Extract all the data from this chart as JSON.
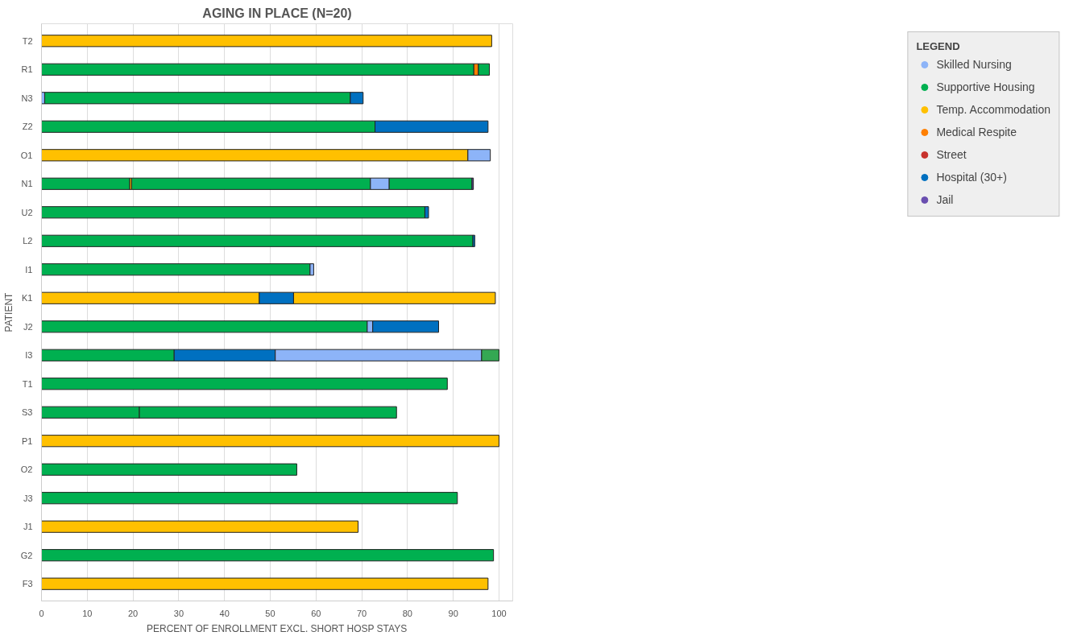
{
  "chart_data": {
    "type": "bar",
    "orientation": "horizontal",
    "stacked": true,
    "title": "AGING IN PLACE (N=20)",
    "xlabel": "PERCENT OF ENROLLMENT EXCL. SHORT HOSP STAYS",
    "ylabel": "PATIENT",
    "categories": [
      "T2",
      "R1",
      "N3",
      "Z2",
      "O1",
      "N1",
      "U2",
      "L2",
      "I1",
      "K1",
      "J2",
      "I3",
      "T1",
      "S3",
      "P1",
      "O2",
      "J3",
      "J1",
      "G2",
      "F3"
    ],
    "xlim": [
      0,
      103
    ],
    "xticks": [
      0,
      10,
      20,
      30,
      40,
      50,
      60,
      70,
      80,
      90,
      100
    ],
    "grid": "x",
    "legend": "right",
    "legend_title": "LEGEND",
    "series": [
      {
        "name": "Skilled Nursing",
        "color": "#8db4f8",
        "values": [
          null,
          null,
          0.7,
          null,
          null,
          null,
          null,
          null,
          null,
          null,
          null,
          null,
          null,
          null,
          null,
          null,
          null,
          null,
          null,
          null
        ]
      },
      {
        "name": "Supportive Housing",
        "color": "#00b050",
        "values": [
          null,
          94.5,
          66.8,
          72.9,
          null,
          19.3,
          83.8,
          94.3,
          58.7,
          null,
          71.2,
          29.0,
          88.7,
          21.4,
          null,
          55.8,
          90.9,
          null,
          98.8,
          null
        ]
      },
      {
        "name": "Temp. Accommodation",
        "color": "#ffc000",
        "values": [
          98.4,
          null,
          null,
          null,
          93.2,
          0.4,
          null,
          null,
          null,
          47.6,
          null,
          null,
          null,
          null,
          100,
          null,
          null,
          69.2,
          null,
          97.6
        ]
      },
      {
        "name": "Medical Respite",
        "color": "#ff7f00",
        "values": [
          null,
          1.0,
          null,
          null,
          null,
          null,
          null,
          null,
          null,
          null,
          null,
          null,
          null,
          null,
          null,
          null,
          null,
          null,
          null,
          null
        ]
      },
      {
        "name": "Street",
        "color": "#c8322d",
        "values": [
          null,
          null,
          null,
          null,
          null,
          null,
          null,
          null,
          null,
          null,
          null,
          null,
          null,
          null,
          null,
          null,
          null,
          null,
          null,
          null
        ]
      },
      {
        "name": "Hospital (30+)",
        "color": "#0070c0",
        "values": [
          null,
          null,
          2.8,
          24.7,
          null,
          null,
          null,
          null,
          null,
          7.5,
          null,
          22.1,
          null,
          null,
          null,
          null,
          null,
          null,
          null,
          null
        ]
      },
      {
        "color": "#00b050",
        "values": [
          null,
          2.4,
          null,
          null,
          null,
          52.2,
          null,
          null,
          null,
          null,
          null,
          null,
          null,
          56.2,
          null,
          null,
          null,
          null,
          null,
          null
        ]
      },
      {
        "color": "#ffc000",
        "values": [
          null,
          null,
          null,
          null,
          null,
          null,
          null,
          null,
          null,
          44.1,
          null,
          null,
          null,
          null,
          null,
          null,
          null,
          null,
          null,
          null
        ]
      },
      {
        "color": "#8db4f8",
        "values": [
          null,
          null,
          null,
          null,
          4.9,
          4.1,
          null,
          null,
          0.8,
          null,
          1.2,
          45.1,
          null,
          null,
          null,
          null,
          null,
          null,
          null,
          null
        ]
      },
      {
        "color": "#0070c0",
        "values": [
          null,
          null,
          null,
          null,
          null,
          null,
          0.8,
          0.4,
          null,
          null,
          14.4,
          null,
          null,
          null,
          null,
          null,
          null,
          null,
          null,
          null
        ]
      },
      {
        "color": "#00b050",
        "values": [
          null,
          null,
          null,
          null,
          null,
          18.1,
          null,
          null,
          null,
          null,
          null,
          null,
          null,
          null,
          null,
          null,
          null,
          null,
          null,
          null
        ]
      },
      {
        "color": "#34a853",
        "values": [
          null,
          null,
          null,
          null,
          null,
          null,
          null,
          null,
          null,
          null,
          null,
          3.8,
          null,
          null,
          null,
          null,
          null,
          null,
          null,
          null
        ]
      },
      {
        "name": "Jail",
        "color": "#6a4fb0",
        "values": [
          null,
          null,
          null,
          null,
          null,
          0.3,
          null,
          null,
          null,
          null,
          null,
          null,
          null,
          null,
          null,
          null,
          null,
          null,
          null,
          null
        ]
      }
    ]
  }
}
